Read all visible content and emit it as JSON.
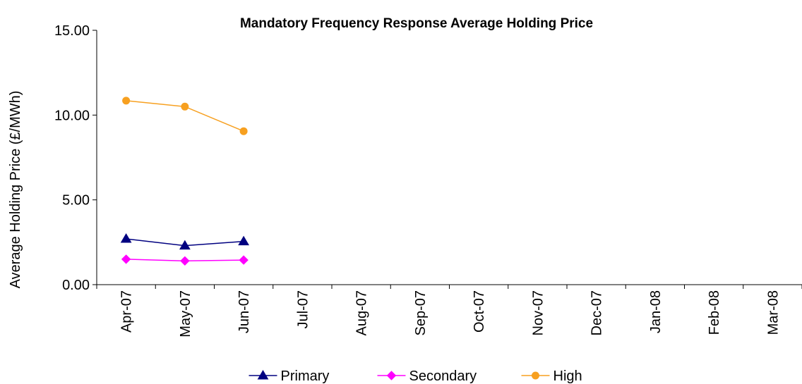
{
  "chart_data": {
    "type": "line",
    "title": "Mandatory Frequency Response Average Holding Price",
    "y_label": "Average Holding Price (£/MWh)",
    "categories": [
      "Apr-07",
      "May-07",
      "Jun-07",
      "Jul-07",
      "Aug-07",
      "Sep-07",
      "Oct-07",
      "Nov-07",
      "Dec-07",
      "Jan-08",
      "Feb-08",
      "Mar-08"
    ],
    "series": [
      {
        "name": "Primary",
        "color": "#000080",
        "marker": "triangle",
        "values": [
          2.7,
          2.3,
          2.55,
          null,
          null,
          null,
          null,
          null,
          null,
          null,
          null,
          null
        ]
      },
      {
        "name": "Secondary",
        "color": "#ff00ff",
        "marker": "diamond",
        "values": [
          1.5,
          1.4,
          1.45,
          null,
          null,
          null,
          null,
          null,
          null,
          null,
          null,
          null
        ]
      },
      {
        "name": "High",
        "color": "#f7a020",
        "marker": "circle",
        "values": [
          10.85,
          10.5,
          9.05,
          null,
          null,
          null,
          null,
          null,
          null,
          null,
          null,
          null
        ]
      }
    ],
    "ylim": [
      0,
      15
    ],
    "yticks": [
      {
        "value": 0,
        "label": "0.00"
      },
      {
        "value": 5,
        "label": "5.00"
      },
      {
        "value": 10,
        "label": "10.00"
      },
      {
        "value": 15,
        "label": "15.00"
      }
    ],
    "grid": false,
    "legend": "bottom"
  }
}
